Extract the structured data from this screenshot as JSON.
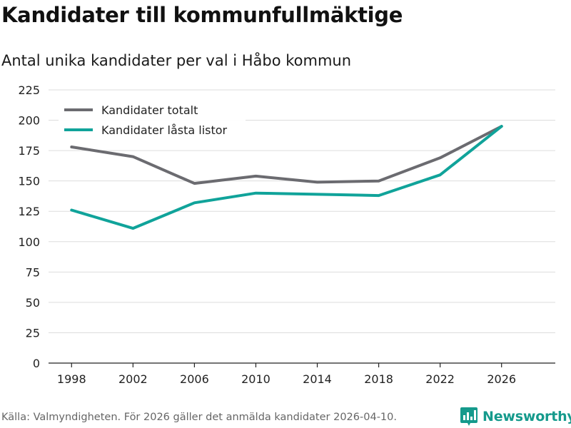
{
  "title": "Kandidater till kommunfullmäktige",
  "subtitle": "Antal unika kandidater per val i Håbo kommun",
  "source": "Källa: Valmyndigheten. För 2026 gäller det anmälda kandidater 2026-04-10.",
  "brand": {
    "name": "Newsworthy",
    "icon": "newsworthy-logo-icon",
    "color": "#159a8c"
  },
  "chart_data": {
    "type": "line",
    "x": [
      1998,
      2002,
      2006,
      2010,
      2014,
      2018,
      2022,
      2026
    ],
    "x_tick_labels": [
      "1998",
      "2002",
      "2006",
      "2010",
      "2014",
      "2018",
      "2022",
      "2026"
    ],
    "y_ticks": [
      0,
      25,
      50,
      75,
      100,
      125,
      150,
      175,
      200,
      225
    ],
    "y_tick_labels": [
      "0",
      "25",
      "50",
      "75",
      "100",
      "125",
      "150",
      "175",
      "200",
      "225"
    ],
    "ylim": [
      0,
      225
    ],
    "xlim": [
      1996.5,
      2029.5
    ],
    "grid": "horizontal",
    "legend_position": "top-left",
    "xlabel": "",
    "ylabel": "",
    "series": [
      {
        "name": "Kandidater totalt",
        "color": "#6b6b70",
        "values": [
          178,
          170,
          148,
          154,
          149,
          150,
          169,
          195
        ]
      },
      {
        "name": "Kandidater låsta listor",
        "color": "#10a39a",
        "values": [
          126,
          111,
          132,
          140,
          139,
          138,
          155,
          195
        ]
      }
    ]
  }
}
